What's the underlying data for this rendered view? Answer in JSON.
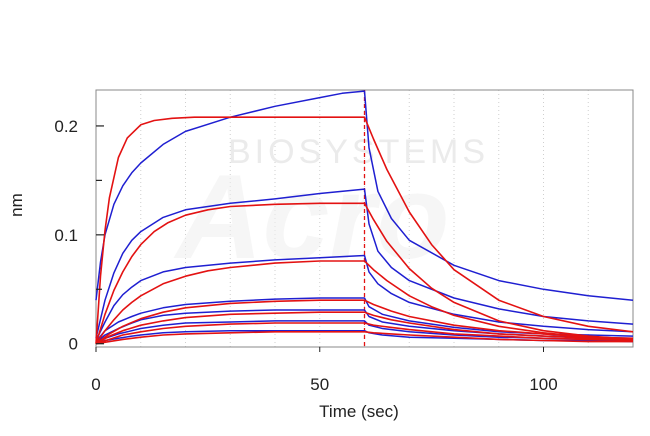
{
  "watermark": {
    "line1": "BIOSYSTEMS",
    "line2": "Acro"
  },
  "chart_data": {
    "type": "line",
    "xlabel": "Time (sec)",
    "ylabel": "nm",
    "xlim": [
      0,
      120
    ],
    "ylim": [
      -0.003,
      0.233
    ],
    "xticks": [
      0,
      50,
      100
    ],
    "xtick_labels": [
      "0",
      "50",
      "100"
    ],
    "yticks": [
      0,
      0.1,
      0.2
    ],
    "ytick_labels": [
      "0",
      "0.1",
      "0.2"
    ],
    "y_minor_ticks": [
      0.05,
      0.15
    ],
    "grid": "dotted vertical",
    "phase_boundary_x": 60,
    "legend": "none",
    "colors": {
      "measured": "#1f1fd1",
      "fit": "#e31212",
      "boundary": "#e31212"
    },
    "measured_series": [
      {
        "x": [
          0,
          1,
          2,
          4,
          6,
          8,
          10,
          15,
          20,
          30,
          40,
          50,
          55,
          60,
          61,
          63,
          66,
          70,
          80,
          90,
          100,
          110,
          120
        ],
        "y": [
          0.04,
          0.075,
          0.1,
          0.128,
          0.145,
          0.157,
          0.166,
          0.183,
          0.195,
          0.208,
          0.218,
          0.226,
          0.23,
          0.232,
          0.18,
          0.14,
          0.115,
          0.095,
          0.072,
          0.058,
          0.05,
          0.044,
          0.04
        ]
      },
      {
        "x": [
          0,
          2,
          4,
          6,
          8,
          10,
          15,
          20,
          30,
          40,
          50,
          60,
          61,
          63,
          66,
          70,
          80,
          90,
          100,
          110,
          120
        ],
        "y": [
          0.005,
          0.04,
          0.065,
          0.083,
          0.095,
          0.103,
          0.116,
          0.123,
          0.129,
          0.133,
          0.138,
          0.142,
          0.11,
          0.085,
          0.07,
          0.058,
          0.042,
          0.032,
          0.025,
          0.021,
          0.018
        ]
      },
      {
        "x": [
          0,
          2,
          4,
          6,
          8,
          10,
          15,
          20,
          30,
          40,
          50,
          60,
          61,
          63,
          66,
          70,
          80,
          90,
          100,
          110,
          120
        ],
        "y": [
          0.003,
          0.02,
          0.035,
          0.045,
          0.052,
          0.058,
          0.066,
          0.07,
          0.074,
          0.077,
          0.079,
          0.081,
          0.066,
          0.055,
          0.046,
          0.038,
          0.027,
          0.02,
          0.016,
          0.013,
          0.011
        ]
      },
      {
        "x": [
          0,
          2,
          5,
          8,
          10,
          15,
          20,
          30,
          40,
          50,
          60,
          61,
          64,
          70,
          80,
          90,
          100,
          110,
          120
        ],
        "y": [
          0.002,
          0.012,
          0.02,
          0.025,
          0.028,
          0.033,
          0.036,
          0.039,
          0.041,
          0.042,
          0.042,
          0.034,
          0.027,
          0.021,
          0.015,
          0.011,
          0.009,
          0.008,
          0.007
        ]
      },
      {
        "x": [
          0,
          2,
          5,
          8,
          10,
          15,
          20,
          30,
          40,
          50,
          60,
          61,
          64,
          70,
          80,
          90,
          100,
          110,
          120
        ],
        "y": [
          0.001,
          0.008,
          0.014,
          0.019,
          0.022,
          0.026,
          0.028,
          0.03,
          0.031,
          0.031,
          0.031,
          0.025,
          0.02,
          0.016,
          0.012,
          0.009,
          0.007,
          0.006,
          0.005
        ]
      },
      {
        "x": [
          0,
          2,
          5,
          8,
          10,
          15,
          20,
          30,
          40,
          50,
          60,
          61,
          64,
          70,
          80,
          90,
          100,
          110,
          120
        ],
        "y": [
          0.0005,
          0.005,
          0.009,
          0.012,
          0.014,
          0.017,
          0.019,
          0.02,
          0.021,
          0.021,
          0.021,
          0.017,
          0.014,
          0.011,
          0.008,
          0.006,
          0.005,
          0.004,
          0.004
        ]
      },
      {
        "x": [
          0,
          2,
          5,
          8,
          10,
          15,
          20,
          30,
          40,
          50,
          60,
          61,
          64,
          70,
          80,
          90,
          100,
          110,
          120
        ],
        "y": [
          0,
          0.003,
          0.005,
          0.007,
          0.008,
          0.01,
          0.011,
          0.012,
          0.012,
          0.012,
          0.012,
          0.01,
          0.008,
          0.006,
          0.005,
          0.004,
          0.003,
          0.003,
          0.002
        ]
      }
    ],
    "fit_series": [
      {
        "x": [
          0,
          1,
          2,
          3,
          5,
          7,
          10,
          13,
          17,
          22,
          30,
          40,
          50,
          60,
          62,
          65,
          70,
          75,
          80,
          90,
          100,
          110,
          120
        ],
        "y": [
          0,
          0.062,
          0.104,
          0.134,
          0.171,
          0.189,
          0.201,
          0.205,
          0.207,
          0.208,
          0.208,
          0.208,
          0.208,
          0.208,
          0.188,
          0.16,
          0.121,
          0.091,
          0.068,
          0.04,
          0.025,
          0.016,
          0.011
        ]
      },
      {
        "x": [
          0,
          2,
          4,
          6,
          8,
          10,
          13,
          16,
          20,
          25,
          30,
          40,
          50,
          60,
          62,
          65,
          70,
          75,
          80,
          90,
          100,
          110,
          120
        ],
        "y": [
          0,
          0.027,
          0.049,
          0.066,
          0.08,
          0.091,
          0.103,
          0.111,
          0.118,
          0.123,
          0.126,
          0.128,
          0.129,
          0.129,
          0.114,
          0.094,
          0.069,
          0.051,
          0.038,
          0.021,
          0.012,
          0.007,
          0.004
        ]
      },
      {
        "x": [
          0,
          2,
          4,
          6,
          8,
          10,
          15,
          20,
          25,
          30,
          40,
          50,
          60,
          62,
          65,
          70,
          75,
          80,
          90,
          100,
          110,
          120
        ],
        "y": [
          0,
          0.012,
          0.022,
          0.031,
          0.038,
          0.044,
          0.055,
          0.062,
          0.067,
          0.07,
          0.074,
          0.076,
          0.076,
          0.068,
          0.058,
          0.044,
          0.034,
          0.026,
          0.016,
          0.01,
          0.006,
          0.004
        ]
      },
      {
        "x": [
          0,
          3,
          6,
          10,
          15,
          20,
          30,
          40,
          50,
          60,
          62,
          66,
          70,
          80,
          90,
          100,
          110,
          120
        ],
        "y": [
          0,
          0.009,
          0.016,
          0.023,
          0.029,
          0.033,
          0.037,
          0.039,
          0.04,
          0.04,
          0.036,
          0.03,
          0.025,
          0.017,
          0.012,
          0.009,
          0.006,
          0.005
        ]
      },
      {
        "x": [
          0,
          3,
          6,
          10,
          15,
          20,
          30,
          40,
          50,
          60,
          62,
          66,
          70,
          80,
          90,
          100,
          110,
          120
        ],
        "y": [
          0,
          0.007,
          0.012,
          0.017,
          0.021,
          0.024,
          0.027,
          0.028,
          0.029,
          0.029,
          0.026,
          0.022,
          0.019,
          0.013,
          0.009,
          0.007,
          0.005,
          0.004
        ]
      },
      {
        "x": [
          0,
          3,
          6,
          10,
          15,
          20,
          30,
          40,
          50,
          60,
          62,
          66,
          70,
          80,
          90,
          100,
          110,
          120
        ],
        "y": [
          0,
          0.004,
          0.008,
          0.011,
          0.014,
          0.016,
          0.018,
          0.019,
          0.019,
          0.019,
          0.017,
          0.015,
          0.013,
          0.009,
          0.007,
          0.005,
          0.004,
          0.003
        ]
      },
      {
        "x": [
          0,
          3,
          6,
          10,
          15,
          20,
          30,
          40,
          50,
          60,
          62,
          66,
          70,
          80,
          90,
          100,
          110,
          120
        ],
        "y": [
          0,
          0.002,
          0.004,
          0.006,
          0.008,
          0.009,
          0.01,
          0.011,
          0.011,
          0.011,
          0.01,
          0.009,
          0.008,
          0.006,
          0.004,
          0.003,
          0.002,
          0.002
        ]
      }
    ]
  }
}
